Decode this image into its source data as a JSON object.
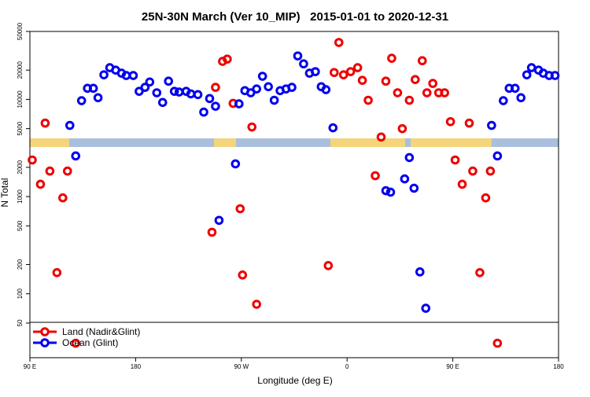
{
  "chart_data": {
    "type": "scatter",
    "title": "25N-30N March (Ver 10_MIP)   2015-01-01 to 2020-12-31",
    "x_label": "Longitude (deg E)",
    "y_label": "N Total",
    "log_y": true,
    "xlim": [
      90,
      540
    ],
    "ylim": [
      22,
      50000
    ],
    "xticks": [
      {
        "value": 90,
        "label": "90 E"
      },
      180,
      {
        "value": 270,
        "label": "90 W"
      },
      {
        "value": 360,
        "label": "0"
      },
      {
        "value": 450,
        "label": "90 E"
      },
      {
        "value": 540,
        "label": "180"
      }
    ],
    "yticks": [
      50,
      100,
      200,
      500,
      1000,
      2000,
      5000,
      10000,
      20000,
      50000
    ],
    "legend": "bottom-left",
    "series": [
      {
        "name": "Land (Nadir&Glint)",
        "color": "#ee0000",
        "x": [
          92,
          99,
          103,
          107,
          113,
          118,
          122,
          129,
          245,
          248,
          254,
          258,
          263,
          269,
          271,
          279,
          283,
          344,
          349,
          353,
          357,
          363,
          369,
          373,
          378,
          384,
          389,
          393,
          398,
          403,
          407,
          413,
          418,
          424,
          428,
          433,
          438,
          443,
          448,
          452,
          458,
          464,
          467,
          473,
          478,
          482,
          488
        ],
        "values": [
          2380,
          1340,
          5700,
          1830,
          165,
          970,
          1830,
          31,
          430,
          13300,
          24600,
          26000,
          9100,
          750,
          156,
          5200,
          78,
          195,
          18900,
          38500,
          17900,
          19300,
          21200,
          15700,
          9800,
          1640,
          4100,
          15400,
          26500,
          11700,
          5000,
          9800,
          16000,
          25000,
          11700,
          14600,
          11700,
          11700,
          5900,
          2380,
          1340,
          5700,
          1830,
          165,
          970,
          1830,
          31
        ]
      },
      {
        "name": "Ocean (Glint)",
        "color": "#0000ee",
        "x": [
          124,
          129,
          134,
          139,
          144,
          148,
          153,
          158,
          163,
          168,
          172,
          178,
          183,
          188,
          192,
          198,
          203,
          208,
          213,
          217,
          223,
          227,
          233,
          238,
          243,
          248,
          251,
          265,
          268,
          273,
          278,
          283,
          288,
          293,
          298,
          303,
          308,
          313,
          318,
          323,
          328,
          333,
          338,
          342,
          348,
          393,
          397,
          409,
          413,
          417,
          422,
          427,
          483,
          488,
          493,
          498,
          503,
          508,
          513,
          517,
          523,
          527,
          532,
          537
        ],
        "values": [
          5400,
          2620,
          9700,
          13000,
          13000,
          10400,
          17900,
          21200,
          20000,
          18600,
          17600,
          17600,
          12100,
          13300,
          15100,
          11700,
          9300,
          15400,
          12100,
          11900,
          12100,
          11400,
          11200,
          7400,
          10200,
          8500,
          570,
          2170,
          9000,
          12300,
          11700,
          12800,
          17300,
          13500,
          9800,
          12300,
          12800,
          13300,
          28000,
          23200,
          18600,
          19300,
          13500,
          12600,
          5100,
          1150,
          1110,
          1520,
          2520,
          1220,
          168,
          71,
          5400,
          2620,
          9700,
          13000,
          13000,
          10400,
          17900,
          21200,
          20000,
          18600,
          17600,
          17600
        ]
      }
    ]
  }
}
